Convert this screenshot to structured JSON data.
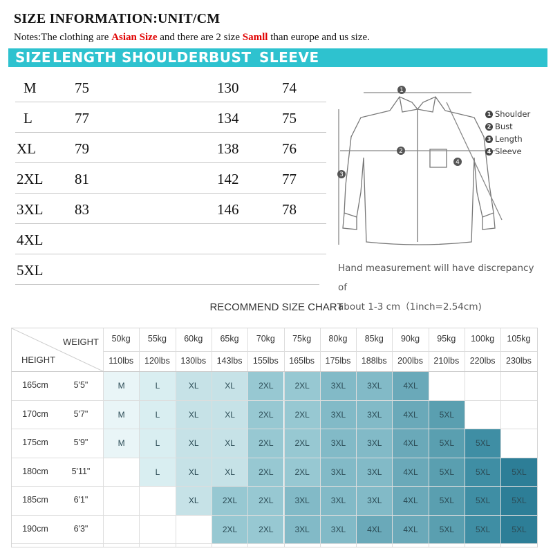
{
  "title": "SIZE INFORMATION:UNIT/CM",
  "notes": {
    "prefix": "Notes:The clothing are ",
    "asian": "Asian Size",
    "middle": " and there are 2 size ",
    "samll": "Samll",
    "suffix": " than europe and us size."
  },
  "header": {
    "size": "SIZE",
    "length": "LENGTH",
    "shoulder": "SHOULDER",
    "bust": "BUST",
    "sleeve": "SLEEVE"
  },
  "size_table": [
    {
      "size": "M",
      "length": "75",
      "bust": "130",
      "sleeve": "74"
    },
    {
      "size": "L",
      "length": "77",
      "bust": "134",
      "sleeve": "75"
    },
    {
      "size": "XL",
      "length": "79",
      "bust": "138",
      "sleeve": "76"
    },
    {
      "size": "2XL",
      "length": "81",
      "bust": "142",
      "sleeve": "77"
    },
    {
      "size": "3XL",
      "length": "83",
      "bust": "146",
      "sleeve": "78"
    },
    {
      "size": "4XL",
      "length": "",
      "bust": "",
      "sleeve": ""
    },
    {
      "size": "5XL",
      "length": "",
      "bust": "",
      "sleeve": ""
    }
  ],
  "legend": [
    {
      "num": "1",
      "label": "Shoulder"
    },
    {
      "num": "2",
      "label": "Bust"
    },
    {
      "num": "3",
      "label": "Length"
    },
    {
      "num": "4",
      "label": "Sleeve"
    }
  ],
  "disclaimer": {
    "line1": "Hand measurement will have discrepancy of",
    "line2": "about 1-3 cm（1inch=2.54cm)"
  },
  "recommend": {
    "title": "RECOMMEND SIZE CHART",
    "weight_label": "WEIGHT",
    "height_label": "HEIGHT",
    "weights_kg": [
      "50kg",
      "55kg",
      "60kg",
      "65kg",
      "70kg",
      "75kg",
      "80kg",
      "85kg",
      "90kg",
      "95kg",
      "100kg",
      "105kg"
    ],
    "weights_lbs": [
      "110lbs",
      "120lbs",
      "130lbs",
      "143lbs",
      "155lbs",
      "165lbs",
      "175lbs",
      "188lbs",
      "200lbs",
      "210lbs",
      "220lbs",
      "230lbs"
    ],
    "rows": [
      {
        "cm": "165cm",
        "ft": "5'5\"",
        "sizes": [
          "M",
          "L",
          "XL",
          "XL",
          "2XL",
          "2XL",
          "3XL",
          "3XL",
          "4XL",
          "",
          "",
          ""
        ]
      },
      {
        "cm": "170cm",
        "ft": "5'7\"",
        "sizes": [
          "M",
          "L",
          "XL",
          "XL",
          "2XL",
          "2XL",
          "3XL",
          "3XL",
          "4XL",
          "5XL",
          "",
          ""
        ]
      },
      {
        "cm": "175cm",
        "ft": "5'9\"",
        "sizes": [
          "M",
          "L",
          "XL",
          "XL",
          "2XL",
          "2XL",
          "3XL",
          "3XL",
          "4XL",
          "5XL",
          "5XL",
          ""
        ]
      },
      {
        "cm": "180cm",
        "ft": "5'11\"",
        "sizes": [
          "",
          "L",
          "XL",
          "XL",
          "2XL",
          "2XL",
          "3XL",
          "3XL",
          "4XL",
          "5XL",
          "5XL",
          "5XL"
        ]
      },
      {
        "cm": "185cm",
        "ft": "6'1\"",
        "sizes": [
          "",
          "",
          "XL",
          "2XL",
          "2XL",
          "3XL",
          "3XL",
          "3XL",
          "4XL",
          "5XL",
          "5XL",
          "5XL"
        ]
      },
      {
        "cm": "190cm",
        "ft": "6'3\"",
        "sizes": [
          "",
          "",
          "",
          "2XL",
          "2XL",
          "3XL",
          "3XL",
          "4XL",
          "4XL",
          "5XL",
          "5XL",
          "5XL"
        ]
      }
    ],
    "colors": {
      "M": "#e9f5f7",
      "L": "#d9eef1",
      "XL": "#c6e2e7",
      "2XL": "#97c8d2",
      "3XL": "#82bac7",
      "4XL": "#6aa9b9",
      "5XL": "#5a9fb0",
      "5XL_far": "#2d7e97"
    }
  }
}
